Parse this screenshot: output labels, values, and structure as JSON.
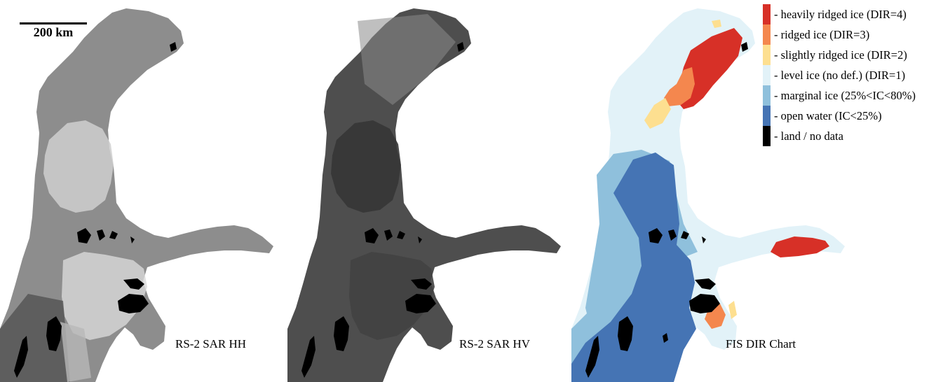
{
  "scale_bar": {
    "label": "200 km"
  },
  "panels": [
    {
      "id": "hh",
      "label": "RS-2 SAR HH"
    },
    {
      "id": "hv",
      "label": "RS-2 SAR HV"
    },
    {
      "id": "dir",
      "label": "FIS DIR Chart"
    }
  ],
  "legend": {
    "items": [
      {
        "text": "- heavily ridged ice (DIR=4)",
        "color": "#d73027"
      },
      {
        "text": "- ridged ice (DIR=3)",
        "color": "#f4874e"
      },
      {
        "text": "- slightly ridged ice (DIR=2)",
        "color": "#fddf90"
      },
      {
        "text": "- level ice (no def.) (DIR=1)",
        "color": "#e2f2f8"
      },
      {
        "text": "- marginal ice (25%<IC<80%)",
        "color": "#8fc0dc"
      },
      {
        "text": "- open water (IC<25%)",
        "color": "#4574b4"
      },
      {
        "text": "- land / no data",
        "color": "#000000"
      }
    ]
  },
  "colors": {
    "hh_ice": "#8d8d8d",
    "hh_bright": "#d6d6d6",
    "hv_ice": "#4e4e4e",
    "hv_dark": "#3a3a3a",
    "land": "#000000"
  }
}
